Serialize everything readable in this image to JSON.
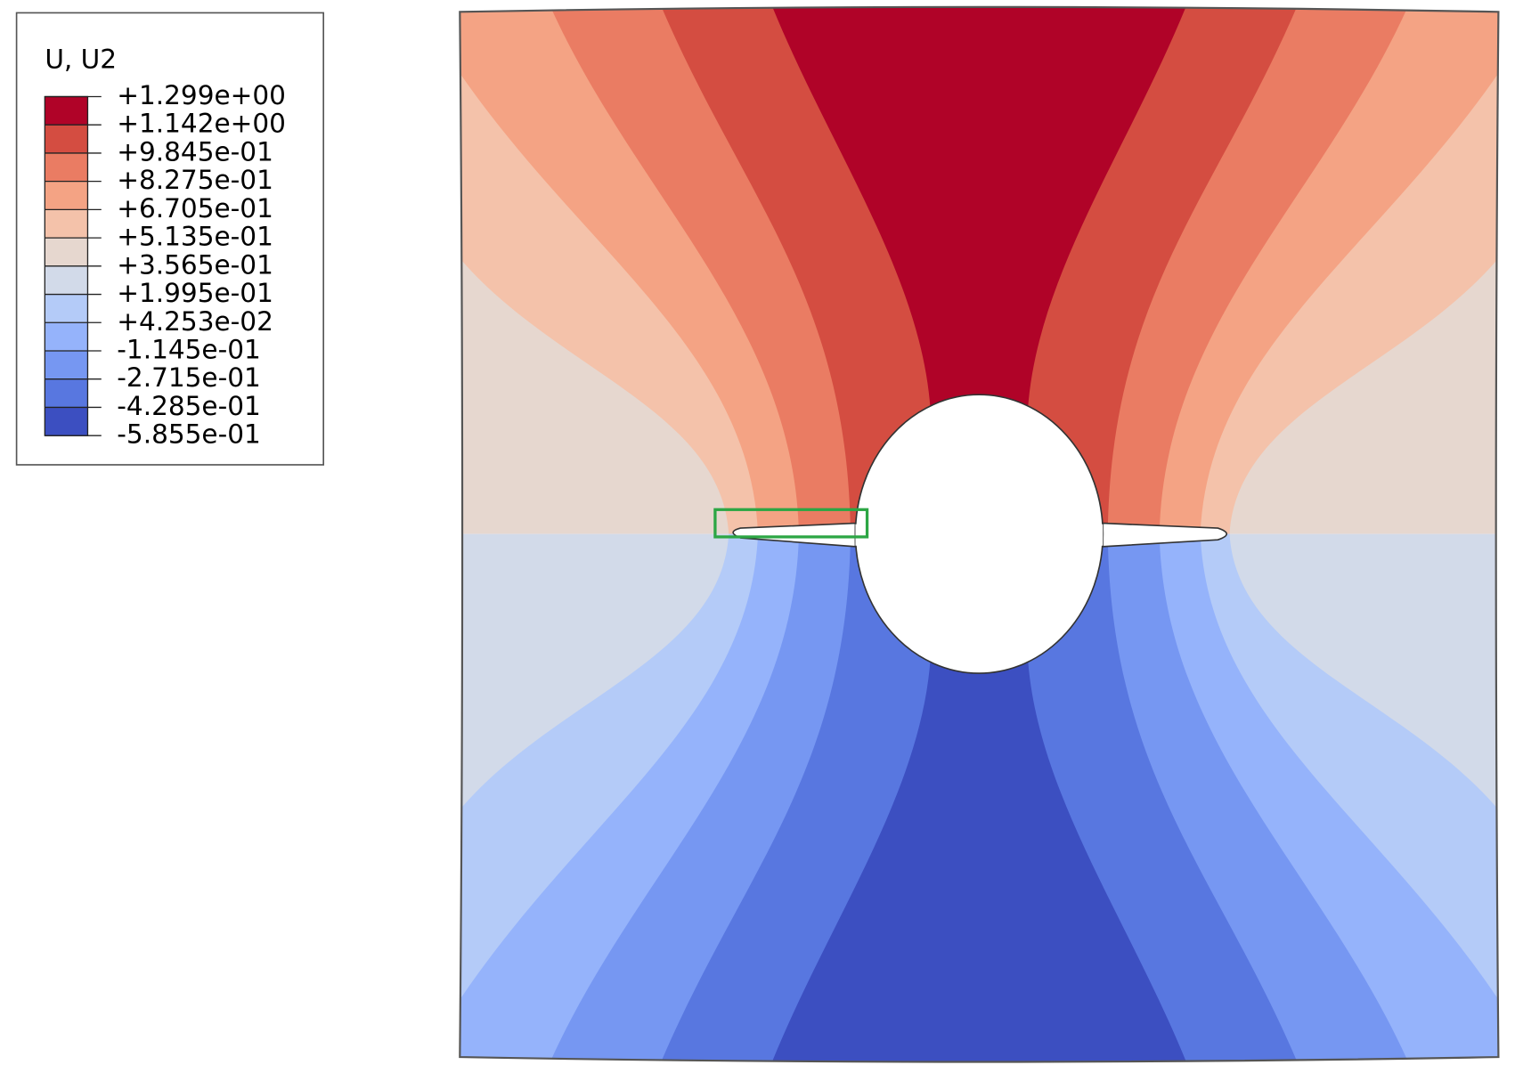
{
  "legend": {
    "title": "U, U2",
    "labels": [
      "+1.299e+00",
      "+1.142e+00",
      "+9.845e-01",
      "+8.275e-01",
      "+6.705e-01",
      "+5.135e-01",
      "+3.565e-01",
      "+1.995e-01",
      "+4.253e-02",
      "-1.145e-01",
      "-2.715e-01",
      "-4.285e-01",
      "-5.855e-01"
    ],
    "colors": [
      "#b00328",
      "#d44d41",
      "#ea7c63",
      "#f4a384",
      "#f4c2aa",
      "#e6d7cf",
      "#d2dae9",
      "#b4cbf8",
      "#95b3fb",
      "#7697f2",
      "#5877e0",
      "#3c4fc1"
    ]
  }
}
